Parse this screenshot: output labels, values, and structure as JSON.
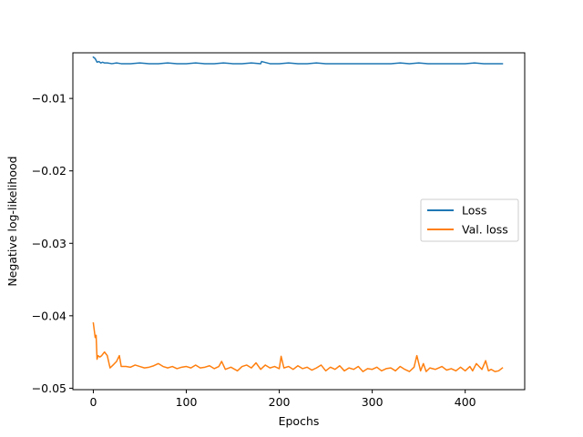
{
  "chart_data": {
    "type": "line",
    "title": "",
    "xlabel": "Epochs",
    "ylabel": "Negative log-likelihood",
    "xlim": [
      -22,
      464
    ],
    "ylim": [
      -0.0502,
      -0.0037
    ],
    "x_ticks": [
      0,
      100,
      200,
      300,
      400
    ],
    "y_ticks": [
      -0.05,
      -0.04,
      -0.03,
      -0.02,
      -0.01
    ],
    "x_tick_labels": [
      "0",
      "100",
      "200",
      "300",
      "400"
    ],
    "y_tick_labels": [
      "−0.05",
      "−0.04",
      "−0.03",
      "−0.02",
      "−0.01"
    ],
    "grid": false,
    "legend_position": "center-right",
    "series": [
      {
        "name": "Loss",
        "color": "#1f77b4",
        "x": [
          0,
          2,
          4,
          6,
          8,
          10,
          12,
          15,
          20,
          25,
          30,
          40,
          50,
          60,
          70,
          80,
          90,
          100,
          110,
          120,
          130,
          140,
          150,
          160,
          170,
          180,
          181,
          190,
          200,
          210,
          220,
          230,
          240,
          250,
          260,
          270,
          280,
          290,
          300,
          310,
          320,
          330,
          340,
          350,
          360,
          370,
          380,
          390,
          400,
          410,
          420,
          430,
          440
        ],
        "y": [
          -0.0043,
          -0.0045,
          -0.005,
          -0.0049,
          -0.0051,
          -0.005,
          -0.0051,
          -0.0051,
          -0.0052,
          -0.0051,
          -0.0052,
          -0.0052,
          -0.0051,
          -0.0052,
          -0.0052,
          -0.0051,
          -0.0052,
          -0.0052,
          -0.0051,
          -0.0052,
          -0.0052,
          -0.0051,
          -0.0052,
          -0.0052,
          -0.0051,
          -0.0052,
          -0.0049,
          -0.0052,
          -0.0052,
          -0.0051,
          -0.0052,
          -0.0052,
          -0.0051,
          -0.0052,
          -0.0052,
          -0.0052,
          -0.0052,
          -0.0052,
          -0.0052,
          -0.0052,
          -0.0052,
          -0.0051,
          -0.0052,
          -0.0051,
          -0.0052,
          -0.0052,
          -0.0052,
          -0.0052,
          -0.0052,
          -0.0051,
          -0.0052,
          -0.0052,
          -0.0052
        ]
      },
      {
        "name": "Val. loss",
        "color": "#ff7f0e",
        "x": [
          0,
          2,
          3,
          4,
          5,
          7,
          9,
          12,
          15,
          18,
          22,
          25,
          28,
          30,
          35,
          40,
          45,
          50,
          55,
          60,
          65,
          70,
          75,
          80,
          85,
          90,
          95,
          100,
          105,
          110,
          115,
          120,
          125,
          130,
          135,
          138,
          142,
          148,
          155,
          160,
          165,
          170,
          175,
          180,
          185,
          190,
          195,
          200,
          202,
          205,
          210,
          215,
          220,
          225,
          230,
          235,
          240,
          245,
          250,
          255,
          260,
          265,
          270,
          275,
          280,
          285,
          290,
          295,
          300,
          305,
          310,
          315,
          320,
          325,
          330,
          335,
          340,
          345,
          348,
          352,
          355,
          358,
          362,
          368,
          375,
          380,
          385,
          390,
          395,
          400,
          405,
          408,
          412,
          418,
          422,
          425,
          428,
          432,
          436,
          440
        ],
        "y": [
          -0.041,
          -0.043,
          -0.0427,
          -0.046,
          -0.0455,
          -0.0457,
          -0.0455,
          -0.045,
          -0.0455,
          -0.0472,
          -0.0467,
          -0.0463,
          -0.0455,
          -0.047,
          -0.047,
          -0.0471,
          -0.0468,
          -0.047,
          -0.0472,
          -0.0471,
          -0.0469,
          -0.0466,
          -0.047,
          -0.0472,
          -0.047,
          -0.0473,
          -0.0471,
          -0.047,
          -0.0472,
          -0.0468,
          -0.0472,
          -0.0471,
          -0.0469,
          -0.0473,
          -0.047,
          -0.0463,
          -0.0474,
          -0.0471,
          -0.0476,
          -0.047,
          -0.0468,
          -0.0472,
          -0.0465,
          -0.0474,
          -0.0468,
          -0.0472,
          -0.047,
          -0.0473,
          -0.0456,
          -0.0472,
          -0.047,
          -0.0474,
          -0.0469,
          -0.0473,
          -0.0471,
          -0.0475,
          -0.0472,
          -0.0468,
          -0.0476,
          -0.0471,
          -0.0474,
          -0.0469,
          -0.0476,
          -0.0472,
          -0.0474,
          -0.047,
          -0.0477,
          -0.0473,
          -0.0474,
          -0.0471,
          -0.0476,
          -0.0473,
          -0.0472,
          -0.0476,
          -0.047,
          -0.0474,
          -0.0477,
          -0.0471,
          -0.0455,
          -0.0476,
          -0.0466,
          -0.0477,
          -0.0472,
          -0.0474,
          -0.047,
          -0.0475,
          -0.0473,
          -0.0476,
          -0.0471,
          -0.0476,
          -0.047,
          -0.0476,
          -0.0466,
          -0.0474,
          -0.0462,
          -0.0476,
          -0.0474,
          -0.0477,
          -0.0476,
          -0.0472
        ]
      }
    ]
  }
}
